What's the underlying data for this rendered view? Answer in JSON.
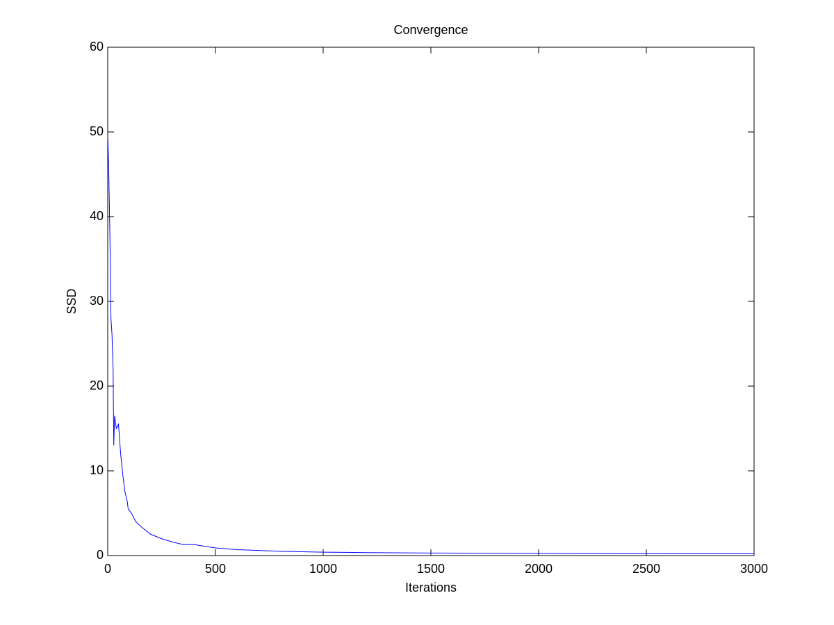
{
  "chart_data": {
    "type": "line",
    "title": "Convergence",
    "x_label": "Iterations",
    "y_label": "SSD",
    "xlim": [
      0,
      3000
    ],
    "ylim": [
      0,
      60
    ],
    "xticks": [
      0,
      500,
      1000,
      1500,
      2000,
      2500,
      3000
    ],
    "yticks": [
      0,
      10,
      20,
      30,
      40,
      50,
      60
    ],
    "grid": false,
    "x": [
      1,
      5,
      10,
      15,
      20,
      25,
      28,
      32,
      40,
      50,
      60,
      70,
      80,
      90,
      95,
      110,
      130,
      160,
      200,
      250,
      300,
      350,
      400,
      450,
      500,
      600,
      700,
      800,
      1000,
      1200,
      1500,
      2000,
      2500,
      3000
    ],
    "series": [
      {
        "name": "SSD",
        "color": "#0000ff",
        "values": [
          49,
          45,
          38,
          28,
          26,
          22,
          13,
          16.5,
          15,
          15.5,
          12,
          9.5,
          7.5,
          6.5,
          5.5,
          5,
          4,
          3.3,
          2.5,
          2,
          1.6,
          1.3,
          1.3,
          1.1,
          0.9,
          0.7,
          0.6,
          0.5,
          0.4,
          0.35,
          0.3,
          0.25,
          0.22,
          0.2
        ]
      }
    ]
  }
}
